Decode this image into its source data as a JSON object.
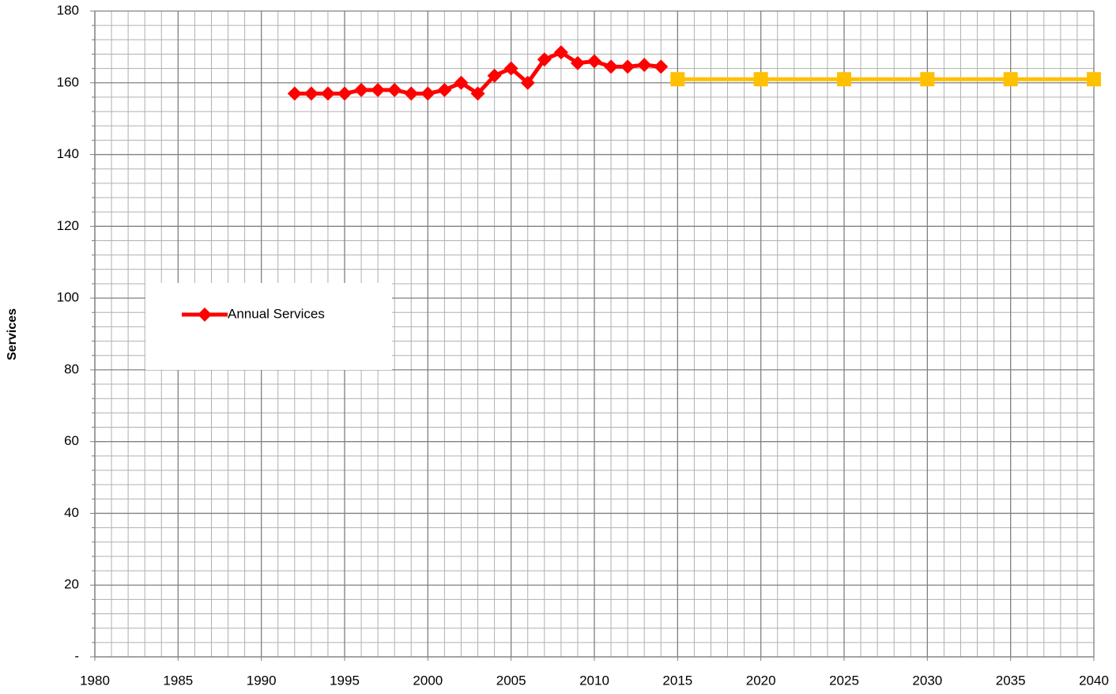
{
  "chart_data": {
    "type": "line",
    "y_label": "Services",
    "xlim": [
      1980,
      2040
    ],
    "xticks": [
      1980,
      1985,
      1990,
      1995,
      2000,
      2005,
      2010,
      2015,
      2020,
      2025,
      2030,
      2035,
      2040
    ],
    "ylim": [
      0,
      180
    ],
    "yticks": [
      {
        "value": 0,
        "label": "-"
      },
      20,
      40,
      60,
      80,
      100,
      120,
      140,
      160,
      180
    ],
    "grid": true,
    "legend": "left",
    "series": [
      {
        "name": "Annual Services",
        "color": "#ff0000",
        "marker": "diamond",
        "x": [
          1992,
          1993,
          1994,
          1995,
          1996,
          1997,
          1998,
          1999,
          2000,
          2001,
          2002,
          2003,
          2004,
          2005,
          2006,
          2007,
          2008,
          2009,
          2010,
          2011,
          2012,
          2013,
          2014
        ],
        "values": [
          157,
          157,
          157,
          157,
          158,
          158,
          158,
          157,
          157,
          158,
          160,
          157,
          162,
          164,
          160,
          166.5,
          168.5,
          165.5,
          166,
          164.5,
          164.5,
          165,
          164.5
        ]
      },
      {
        "color": "#ffc000",
        "marker": "square",
        "x": [
          2015,
          2020,
          2025,
          2030,
          2035,
          2040
        ],
        "values": [
          161,
          161,
          161,
          161,
          161,
          161
        ]
      }
    ]
  }
}
